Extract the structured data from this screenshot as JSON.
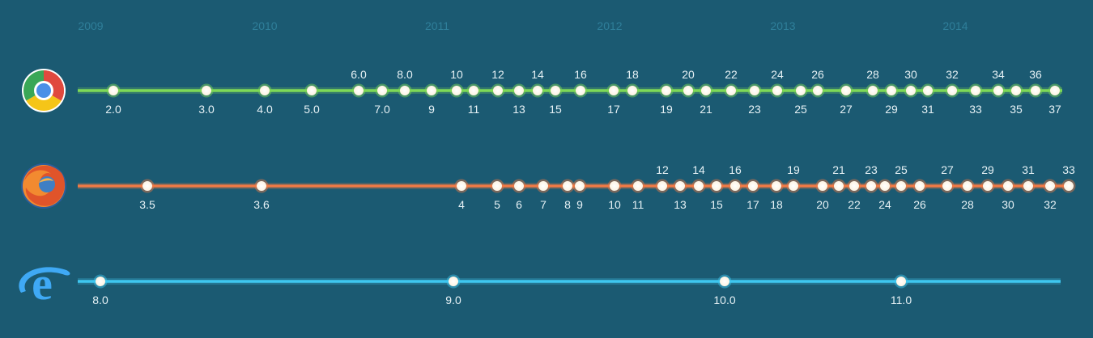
{
  "years": [
    "2009",
    "2010",
    "2011",
    "2012",
    "2013",
    "2014"
  ],
  "browsers": [
    {
      "icon": "chrome-logo-icon",
      "color": "#7ed957",
      "line_end": 1312,
      "releases": [
        {
          "label": "2.0",
          "pos": "below"
        },
        {
          "label": "3.0",
          "pos": "below"
        },
        {
          "label": "4.0",
          "pos": "below"
        },
        {
          "label": "5.0",
          "pos": "below"
        },
        {
          "label": "6.0",
          "pos": "above"
        },
        {
          "label": "7.0",
          "pos": "below"
        },
        {
          "label": "8.0",
          "pos": "above"
        },
        {
          "label": "9",
          "pos": "below"
        },
        {
          "label": "10",
          "pos": "above"
        },
        {
          "label": "11",
          "pos": "below"
        },
        {
          "label": "12",
          "pos": "above"
        },
        {
          "label": "13",
          "pos": "below"
        },
        {
          "label": "14",
          "pos": "above"
        },
        {
          "label": "15",
          "pos": "below"
        },
        {
          "label": "16",
          "pos": "above"
        },
        {
          "label": "17",
          "pos": "below"
        },
        {
          "label": "18",
          "pos": "above"
        },
        {
          "label": "19",
          "pos": "below"
        },
        {
          "label": "20",
          "pos": "above"
        },
        {
          "label": "21",
          "pos": "below"
        },
        {
          "label": "22",
          "pos": "above"
        },
        {
          "label": "23",
          "pos": "below"
        },
        {
          "label": "24",
          "pos": "above"
        },
        {
          "label": "25",
          "pos": "below"
        },
        {
          "label": "26",
          "pos": "above"
        },
        {
          "label": "27",
          "pos": "below"
        },
        {
          "label": "28",
          "pos": "above"
        },
        {
          "label": "29",
          "pos": "below"
        },
        {
          "label": "30",
          "pos": "above"
        },
        {
          "label": "31",
          "pos": "below"
        },
        {
          "label": "32",
          "pos": "above"
        },
        {
          "label": "33",
          "pos": "below"
        },
        {
          "label": "34",
          "pos": "above"
        },
        {
          "label": "35",
          "pos": "below"
        },
        {
          "label": "36",
          "pos": "above"
        },
        {
          "label": "37",
          "pos": "below"
        }
      ]
    },
    {
      "icon": "firefox-logo-icon",
      "color": "#f07a45",
      "line_end": 1322,
      "releases": [
        {
          "label": "3.5",
          "pos": "below"
        },
        {
          "label": "3.6",
          "pos": "below"
        },
        {
          "label": "4",
          "pos": "below"
        },
        {
          "label": "5",
          "pos": "below"
        },
        {
          "label": "6",
          "pos": "below"
        },
        {
          "label": "7",
          "pos": "below"
        },
        {
          "label": "8",
          "pos": "below"
        },
        {
          "label": "9",
          "pos": "below"
        },
        {
          "label": "10",
          "pos": "below"
        },
        {
          "label": "11",
          "pos": "below"
        },
        {
          "label": "12",
          "pos": "above"
        },
        {
          "label": "13",
          "pos": "below"
        },
        {
          "label": "14",
          "pos": "above"
        },
        {
          "label": "15",
          "pos": "below"
        },
        {
          "label": "16",
          "pos": "above"
        },
        {
          "label": "17",
          "pos": "below"
        },
        {
          "label": "18",
          "pos": "below"
        },
        {
          "label": "19",
          "pos": "above"
        },
        {
          "label": "20",
          "pos": "below"
        },
        {
          "label": "21",
          "pos": "above"
        },
        {
          "label": "22",
          "pos": "below"
        },
        {
          "label": "23",
          "pos": "above"
        },
        {
          "label": "24",
          "pos": "below"
        },
        {
          "label": "25",
          "pos": "above"
        },
        {
          "label": "26",
          "pos": "below"
        },
        {
          "label": "27",
          "pos": "above"
        },
        {
          "label": "28",
          "pos": "below"
        },
        {
          "label": "29",
          "pos": "above"
        },
        {
          "label": "30",
          "pos": "below"
        },
        {
          "label": "31",
          "pos": "above"
        },
        {
          "label": "32",
          "pos": "below"
        },
        {
          "label": "33",
          "pos": "above"
        }
      ]
    },
    {
      "icon": "internet-explorer-logo-icon",
      "color": "#3ec7f0",
      "line_end": 1310,
      "releases": [
        {
          "label": "8.0",
          "pos": "below"
        },
        {
          "label": "9.0",
          "pos": "below"
        },
        {
          "label": "10.0",
          "pos": "below"
        },
        {
          "label": "11.0",
          "pos": "below"
        }
      ]
    }
  ]
}
